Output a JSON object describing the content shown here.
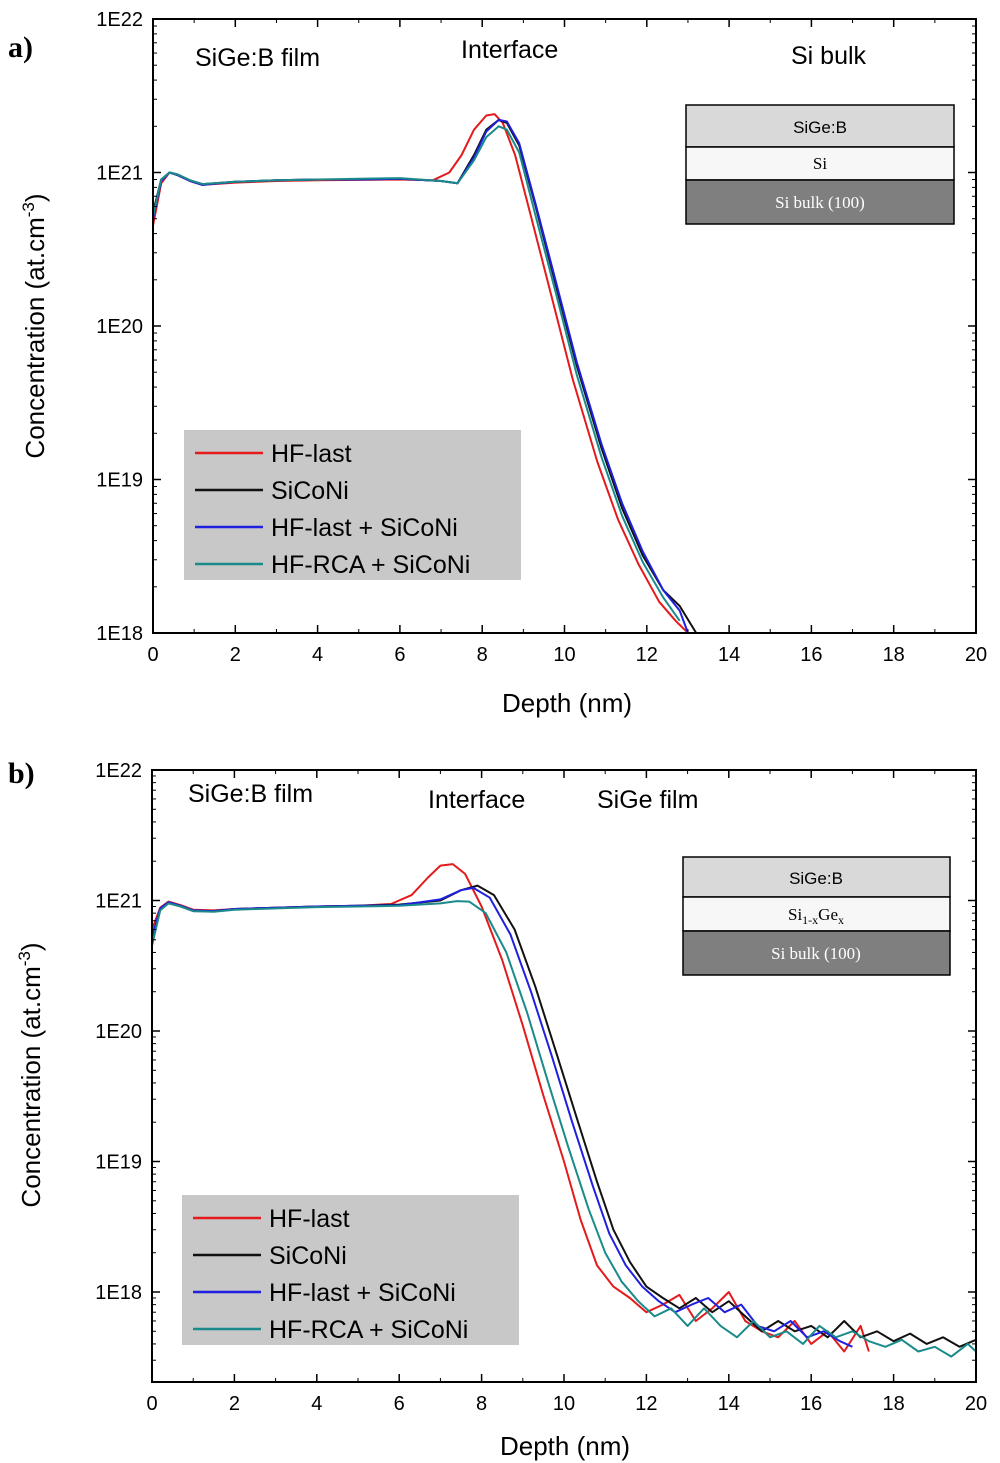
{
  "chart_data": [
    {
      "type": "line",
      "panel_label": "a)",
      "xlabel": "Depth (nm)",
      "ylabel": "Concentration (at.cm",
      "ylabel_sup": "-3",
      "ylabel_close": ")",
      "yscale": "log",
      "xlim": [
        0,
        20
      ],
      "ylim": [
        1e+18,
        1e+22
      ],
      "xticks": [
        "0",
        "2",
        "4",
        "6",
        "8",
        "10",
        "12",
        "14",
        "16",
        "18",
        "20"
      ],
      "yticks": [
        "1E18",
        "1E19",
        "1E20",
        "1E21",
        "1E22"
      ],
      "regions": [
        "SiGe:B film",
        "Interface",
        "Si bulk"
      ],
      "stack": [
        "SiGe:B",
        "Si",
        "Si bulk (100)"
      ],
      "legend": [
        "HF-last",
        "SiCoNi",
        "HF-last + SiCoNi",
        "HF-RCA + SiCoNi"
      ],
      "series": [
        {
          "name": "HF-last",
          "color": "#e41a1c",
          "x": [
            0,
            0.2,
            0.4,
            0.6,
            0.9,
            1.2,
            2,
            3,
            4,
            5,
            6,
            6.8,
            7.2,
            7.5,
            7.8,
            8.1,
            8.3,
            8.5,
            8.8,
            9.2,
            9.7,
            10.2,
            10.8,
            11.3,
            11.8,
            12.3,
            12.7,
            13.0
          ],
          "y": [
            4.5e+20,
            8.5e+20,
            1e+21,
            9.6e+20,
            8.8e+20,
            8.3e+20,
            8.6e+20,
            8.8e+20,
            8.9e+20,
            8.95e+20,
            9e+20,
            8.9e+20,
            1e+21,
            1.3e+21,
            1.9e+21,
            2.35e+21,
            2.4e+21,
            2.1e+21,
            1.3e+21,
            5e+20,
            1.5e+20,
            4.5e+19,
            1.3e+19,
            5.5e+18,
            2.8e+18,
            1.6e+18,
            1.2e+18,
            1e+18
          ]
        },
        {
          "name": "SiCoNi",
          "color": "#111111",
          "x": [
            0,
            0.2,
            0.4,
            0.6,
            0.9,
            1.2,
            2,
            3,
            4,
            5,
            6,
            7,
            7.4,
            7.8,
            8.1,
            8.4,
            8.6,
            8.9,
            9.3,
            9.8,
            10.3,
            10.9,
            11.4,
            11.9,
            12.4,
            12.8,
            13.2
          ],
          "y": [
            5.5e+20,
            9e+20,
            1e+21,
            9.7e+20,
            8.9e+20,
            8.4e+20,
            8.7e+20,
            8.9e+20,
            9e+20,
            9e+20,
            9.1e+20,
            8.8e+20,
            8.5e+20,
            1.3e+21,
            1.9e+21,
            2.2e+21,
            2.1e+21,
            1.5e+21,
            6e+20,
            1.8e+20,
            5.5e+19,
            1.6e+19,
            6.5e+18,
            3.2e+18,
            1.9e+18,
            1.5e+18,
            1e+18
          ]
        },
        {
          "name": "HF-last + SiCoNi",
          "color": "#1f1fe0",
          "x": [
            0,
            0.2,
            0.4,
            0.6,
            0.9,
            1.2,
            2,
            3,
            4,
            5,
            6,
            7,
            7.4,
            7.8,
            8.1,
            8.4,
            8.6,
            8.9,
            9.3,
            9.8,
            10.3,
            10.9,
            11.4,
            11.9,
            12.4,
            12.8,
            13.0
          ],
          "y": [
            5e+20,
            8.8e+20,
            1e+21,
            9.6e+20,
            8.8e+20,
            8.3e+20,
            8.7e+20,
            8.9e+20,
            9e+20,
            9e+20,
            9.1e+20,
            8.8e+20,
            8.5e+20,
            1.25e+21,
            1.85e+21,
            2.2e+21,
            2.15e+21,
            1.55e+21,
            6.2e+20,
            1.9e+20,
            5.8e+19,
            1.7e+19,
            7e+18,
            3.4e+18,
            1.9e+18,
            1.4e+18,
            1e+18
          ]
        },
        {
          "name": "HF-RCA + SiCoNi",
          "color": "#1a8a8a",
          "x": [
            0,
            0.2,
            0.4,
            0.6,
            0.9,
            1.2,
            2,
            3,
            4,
            5,
            6,
            7,
            7.4,
            7.8,
            8.1,
            8.4,
            8.6,
            8.9,
            9.3,
            9.8,
            10.3,
            10.9,
            11.4,
            11.9,
            12.4,
            12.8
          ],
          "y": [
            5.2e+20,
            9e+20,
            1e+21,
            9.7e+20,
            8.9e+20,
            8.4e+20,
            8.7e+20,
            8.9e+20,
            9e+20,
            9.1e+20,
            9.2e+20,
            8.8e+20,
            8.5e+20,
            1.2e+21,
            1.7e+21,
            2e+21,
            1.9e+21,
            1.35e+21,
            5.2e+20,
            1.6e+20,
            4.8e+19,
            1.4e+19,
            5.8e+18,
            2.9e+18,
            1.7e+18,
            1.2e+18
          ]
        }
      ]
    },
    {
      "type": "line",
      "panel_label": "b)",
      "xlabel": "Depth (nm)",
      "ylabel": "Concentration (at.cm",
      "ylabel_sup": "-3",
      "ylabel_close": ")",
      "yscale": "log",
      "xlim": [
        0,
        20
      ],
      "ylim": [
        2e+17,
        1e+22
      ],
      "xticks": [
        "0",
        "2",
        "4",
        "6",
        "8",
        "10",
        "12",
        "14",
        "16",
        "18",
        "20"
      ],
      "yticks": [
        "1E18",
        "1E19",
        "1E20",
        "1E21",
        "1E22"
      ],
      "regions": [
        "SiGe:B film",
        "Interface",
        "SiGe film"
      ],
      "stack": [
        "SiGe:B",
        "Si",
        "1-x",
        "Ge",
        "x",
        "Si bulk (100)"
      ],
      "legend": [
        "HF-last",
        "SiCoNi",
        "HF-last + SiCoNi",
        "HF-RCA + SiCoNi"
      ],
      "series": [
        {
          "name": "HF-last",
          "color": "#e41a1c",
          "x": [
            0,
            0.2,
            0.4,
            0.7,
            1,
            1.5,
            2,
            3,
            4,
            5,
            5.8,
            6.3,
            6.7,
            7.0,
            7.3,
            7.6,
            8.0,
            8.5,
            9.0,
            9.5,
            10.0,
            10.4,
            10.8,
            11.2,
            11.6,
            12.0,
            12.4,
            12.8,
            13.2,
            13.6,
            14.0,
            14.4,
            14.8,
            15.2,
            15.6,
            16.0,
            16.4,
            16.8,
            17.2,
            17.4
          ],
          "y": [
            6e+20,
            8.8e+20,
            9.8e+20,
            9.2e+20,
            8.5e+20,
            8.4e+20,
            8.6e+20,
            8.8e+20,
            9e+20,
            9.1e+20,
            9.4e+20,
            1.1e+21,
            1.5e+21,
            1.85e+21,
            1.9e+21,
            1.6e+21,
            9e+20,
            3.5e+20,
            1.1e+20,
            3.2e+19,
            1e+19,
            3.6e+18,
            1.6e+18,
            1.1e+18,
            9e+17,
            7e+17,
            8e+17,
            9.5e+17,
            6e+17,
            7.5e+17,
            1e+18,
            6e+17,
            5e+17,
            4.5e+17,
            6e+17,
            4e+17,
            5e+17,
            3.5e+17,
            5.5e+17,
            3.5e+17
          ]
        },
        {
          "name": "SiCoNi",
          "color": "#111111",
          "x": [
            0,
            0.2,
            0.4,
            0.7,
            1,
            1.5,
            2,
            3,
            4,
            5,
            6,
            7,
            7.5,
            7.9,
            8.3,
            8.8,
            9.3,
            9.8,
            10.3,
            10.8,
            11.2,
            11.6,
            12.0,
            12.4,
            12.8,
            13.2,
            13.6,
            14.0,
            14.4,
            14.8,
            15.2,
            15.6,
            16.0,
            16.4,
            16.8,
            17.2,
            17.6,
            18.0,
            18.4,
            18.8,
            19.2,
            19.6,
            20.0
          ],
          "y": [
            5e+20,
            8.5e+20,
            9.6e+20,
            9e+20,
            8.3e+20,
            8.3e+20,
            8.6e+20,
            8.8e+20,
            9e+20,
            9.1e+20,
            9.3e+20,
            1e+21,
            1.2e+21,
            1.3e+21,
            1.1e+21,
            6e+20,
            2.2e+20,
            7e+19,
            2.2e+19,
            7e+18,
            3e+18,
            1.7e+18,
            1.1e+18,
            9e+17,
            7.5e+17,
            9e+17,
            7e+17,
            8.5e+17,
            6.5e+17,
            5e+17,
            6e+17,
            5e+17,
            5.5e+17,
            4.5e+17,
            6e+17,
            4.5e+17,
            5e+17,
            4.2e+17,
            4.8e+17,
            4e+17,
            4.5e+17,
            3.8e+17,
            4.3e+17
          ]
        },
        {
          "name": "HF-last + SiCoNi",
          "color": "#1f1fe0",
          "x": [
            0,
            0.2,
            0.4,
            0.7,
            1,
            1.5,
            2,
            3,
            4,
            5,
            6,
            7,
            7.5,
            7.8,
            8.2,
            8.7,
            9.2,
            9.7,
            10.2,
            10.7,
            11.1,
            11.5,
            11.9,
            12.3,
            12.7,
            13.1,
            13.5,
            13.9,
            14.3,
            14.7,
            15.1,
            15.5,
            15.9,
            16.3,
            16.7,
            17.0
          ],
          "y": [
            5.2e+20,
            8.7e+20,
            9.7e+20,
            9.1e+20,
            8.4e+20,
            8.3e+20,
            8.6e+20,
            8.8e+20,
            9e+20,
            9.1e+20,
            9.2e+20,
            1.02e+21,
            1.2e+21,
            1.25e+21,
            1.05e+21,
            5.5e+20,
            2e+20,
            6.5e+19,
            2e+19,
            6.5e+18,
            2.8e+18,
            1.6e+18,
            1.1e+18,
            8.5e+17,
            7e+17,
            8e+17,
            9e+17,
            7e+17,
            8e+17,
            5.5e+17,
            5e+17,
            6e+17,
            4.5e+17,
            5e+17,
            4.2e+17,
            3.8e+17
          ]
        },
        {
          "name": "HF-RCA + SiCoNi",
          "color": "#1a8a8a",
          "x": [
            0,
            0.2,
            0.4,
            0.7,
            1,
            1.5,
            2,
            3,
            4,
            5,
            6,
            7,
            7.4,
            7.7,
            8.1,
            8.6,
            9.1,
            9.6,
            10.1,
            10.6,
            11.0,
            11.4,
            11.8,
            12.2,
            12.6,
            13.0,
            13.4,
            13.8,
            14.2,
            14.6,
            15.0,
            15.4,
            15.8,
            16.2,
            16.6,
            17.0,
            17.4,
            17.8,
            18.2,
            18.6,
            19.0,
            19.4,
            19.8,
            20.0
          ],
          "y": [
            4.5e+20,
            8.4e+20,
            9.5e+20,
            9e+20,
            8.3e+20,
            8.2e+20,
            8.5e+20,
            8.7e+20,
            8.9e+20,
            9e+20,
            9.1e+20,
            9.5e+20,
            9.9e+20,
            9.8e+20,
            8e+20,
            4e+20,
            1.4e+20,
            4.2e+19,
            1.3e+19,
            4.3e+18,
            2e+18,
            1.2e+18,
            8.5e+17,
            6.5e+17,
            7.5e+17,
            5.5e+17,
            7.5e+17,
            5.5e+17,
            4.5e+17,
            6e+17,
            4.5e+17,
            5e+17,
            4e+17,
            5.5e+17,
            4.5e+17,
            5e+17,
            4.2e+17,
            3.8e+17,
            4.3e+17,
            3.5e+17,
            3.8e+17,
            3.2e+17,
            4e+17,
            3.5e+17
          ]
        }
      ]
    }
  ]
}
